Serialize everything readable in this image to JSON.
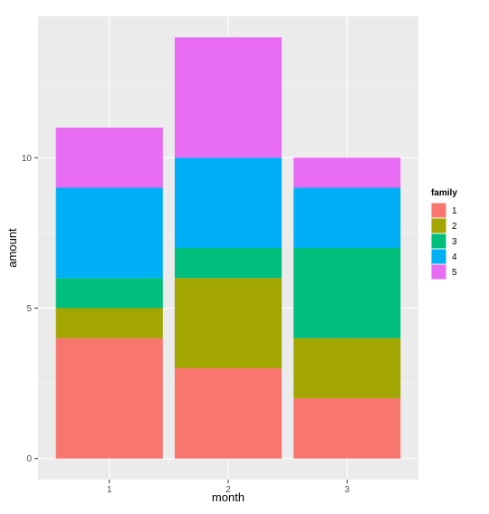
{
  "chart_data": {
    "type": "bar",
    "stacked": true,
    "categories": [
      "1",
      "2",
      "3"
    ],
    "xlabel": "month",
    "ylabel": "amount",
    "yticks": [
      0,
      5,
      10
    ],
    "ylim": [
      -0.7,
      14.7
    ],
    "grid": true,
    "legend": {
      "title": "family",
      "position": "right"
    },
    "series": [
      {
        "name": "1",
        "color": "#F8766D",
        "values": [
          4,
          3,
          2
        ]
      },
      {
        "name": "2",
        "color": "#A3A500",
        "values": [
          1,
          3,
          2
        ]
      },
      {
        "name": "3",
        "color": "#00BF7D",
        "values": [
          1,
          1,
          3
        ]
      },
      {
        "name": "4",
        "color": "#00B0F6",
        "values": [
          3,
          3,
          2
        ]
      },
      {
        "name": "5",
        "color": "#E76BF3",
        "values": [
          2,
          4,
          1
        ]
      }
    ],
    "panel_background": "#EBEBEB",
    "grid_color": "#FFFFFF"
  }
}
